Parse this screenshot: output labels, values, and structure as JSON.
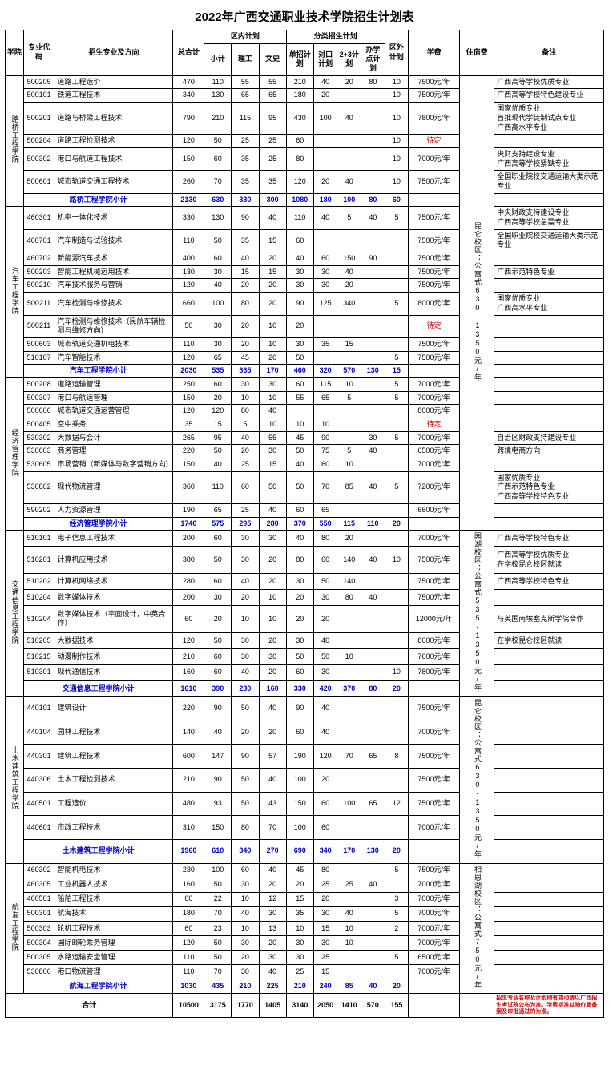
{
  "title": "2022年广西交通职业技术学院招生计划表",
  "headers": {
    "college": "学院",
    "code": "专业代码",
    "major": "招生专业及方向",
    "total": "总合计",
    "innerPlan": "区内计划",
    "inner_sub": "小计",
    "inner_sci": "理工",
    "inner_art": "文史",
    "catPlan": "分类招生计划",
    "cat_single": "单招计划",
    "cat_duikou": "对口计划",
    "cat_23": "2+3计划",
    "cat_banxue": "办学点计划",
    "outer": "区外计划",
    "fee": "学费",
    "dorm": "住宿费",
    "remark": "备注"
  },
  "pending_text": "待定",
  "colleges": [
    {
      "name": "路桥工程学院",
      "dorm": "",
      "rows": [
        {
          "code": "500205",
          "major": "道路工程造价",
          "total": "470",
          "xj": "110",
          "lg": "55",
          "ws": "55",
          "dz": "210",
          "dk": "40",
          "t23": "20",
          "bx": "80",
          "wq": "10",
          "fee": "7500元/年",
          "remark": "广西高等学校优质专业"
        },
        {
          "code": "500101",
          "major": "铁道工程技术",
          "total": "340",
          "xj": "130",
          "lg": "65",
          "ws": "65",
          "dz": "180",
          "dk": "20",
          "t23": "",
          "bx": "",
          "wq": "10",
          "fee": "7500元/年",
          "remark": "广西高等学校特色建设专业"
        },
        {
          "code": "500201",
          "major": "道路与桥梁工程技术",
          "total": "790",
          "xj": "210",
          "lg": "115",
          "ws": "95",
          "dz": "430",
          "dk": "100",
          "t23": "40",
          "bx": "",
          "wq": "10",
          "fee": "7800元/年",
          "remark": "国家优质专业\n首批现代学徒制试点专业\n广西高水平专业"
        },
        {
          "code": "500204",
          "major": "道路工程检测技术",
          "total": "120",
          "xj": "50",
          "lg": "25",
          "ws": "25",
          "dz": "60",
          "dk": "",
          "t23": "",
          "bx": "",
          "wq": "10",
          "fee": "",
          "fee_pending": true,
          "remark": ""
        },
        {
          "code": "500302",
          "major": "港口与航道工程技术",
          "total": "150",
          "xj": "60",
          "lg": "35",
          "ws": "25",
          "dz": "80",
          "dk": "",
          "t23": "",
          "bx": "",
          "wq": "10",
          "fee": "7000元/年",
          "remark": "央财支持建设专业\n广西高等学校紧缺专业"
        },
        {
          "code": "500601",
          "major": "城市轨道交通工程技术",
          "total": "260",
          "xj": "70",
          "lg": "35",
          "ws": "35",
          "dz": "120",
          "dk": "20",
          "t23": "40",
          "bx": "",
          "wq": "10",
          "fee": "7500元/年",
          "remark": "全国职业院校交通运输大类示范专业"
        }
      ],
      "subtotal": {
        "label": "路桥工程学院小计",
        "total": "2130",
        "xj": "630",
        "lg": "330",
        "ws": "300",
        "dz": "1080",
        "dk": "180",
        "t23": "100",
        "bx": "80",
        "wq": "60"
      }
    },
    {
      "name": "汽车工程学院",
      "dorm": "昆仑校区：公寓式630-1350元/年",
      "rows": [
        {
          "code": "460301",
          "major": "机电一体化技术",
          "total": "330",
          "xj": "130",
          "lg": "90",
          "ws": "40",
          "dz": "110",
          "dk": "40",
          "t23": "5",
          "bx": "40",
          "wq": "5",
          "fee": "7500元/年",
          "remark": "中央财政支持建设专业\n广西高等学校急需专业"
        },
        {
          "code": "460701",
          "major": "汽车制造与试验技术",
          "total": "110",
          "xj": "50",
          "lg": "35",
          "ws": "15",
          "dz": "60",
          "dk": "",
          "t23": "",
          "bx": "",
          "wq": "",
          "fee": "7500元/年",
          "remark": "全国职业院校交通运输大类示范专业"
        },
        {
          "code": "460702",
          "major": "新能源汽车技术",
          "total": "400",
          "xj": "60",
          "lg": "40",
          "ws": "20",
          "dz": "40",
          "dk": "60",
          "t23": "150",
          "bx": "90",
          "wq": "",
          "fee": "7500元/年",
          "remark": ""
        },
        {
          "code": "500203",
          "major": "智能工程机械运用技术",
          "total": "130",
          "xj": "30",
          "lg": "15",
          "ws": "15",
          "dz": "30",
          "dk": "30",
          "t23": "40",
          "bx": "",
          "wq": "",
          "fee": "7500元/年",
          "remark": "广西示范特色专业"
        },
        {
          "code": "500210",
          "major": "汽车技术服务与营销",
          "total": "120",
          "xj": "40",
          "lg": "20",
          "ws": "20",
          "dz": "30",
          "dk": "30",
          "t23": "20",
          "bx": "",
          "wq": "",
          "fee": "7500元/年",
          "remark": ""
        },
        {
          "code": "500211",
          "major": "汽车检测与维修技术",
          "total": "660",
          "xj": "100",
          "lg": "80",
          "ws": "20",
          "dz": "90",
          "dk": "125",
          "t23": "340",
          "bx": "",
          "wq": "5",
          "fee": "8000元/年",
          "remark": "国家优质专业\n广西高水平专业"
        },
        {
          "code": "500211",
          "major": "汽车检测与维修技术（民航车辆检测与维修方向）",
          "total": "50",
          "xj": "30",
          "lg": "20",
          "ws": "10",
          "dz": "20",
          "dk": "",
          "t23": "",
          "bx": "",
          "wq": "",
          "fee": "",
          "fee_pending": true,
          "remark": ""
        },
        {
          "code": "500603",
          "major": "城市轨道交通机电技术",
          "total": "110",
          "xj": "30",
          "lg": "20",
          "ws": "10",
          "dz": "30",
          "dk": "35",
          "t23": "15",
          "bx": "",
          "wq": "",
          "fee": "7500元/年",
          "remark": ""
        },
        {
          "code": "510107",
          "major": "汽车智能技术",
          "total": "120",
          "xj": "65",
          "lg": "45",
          "ws": "20",
          "dz": "50",
          "dk": "",
          "t23": "",
          "bx": "",
          "wq": "5",
          "fee": "7500元/年",
          "remark": ""
        }
      ],
      "subtotal": {
        "label": "汽车工程学院小计",
        "total": "2030",
        "xj": "535",
        "lg": "365",
        "ws": "170",
        "dz": "460",
        "dk": "320",
        "t23": "570",
        "bx": "130",
        "wq": "15"
      }
    },
    {
      "name": "经济管理学院",
      "dorm": "",
      "rows": [
        {
          "code": "500208",
          "major": "道路运输管理",
          "total": "250",
          "xj": "60",
          "lg": "30",
          "ws": "30",
          "dz": "60",
          "dk": "115",
          "t23": "10",
          "bx": "",
          "wq": "5",
          "fee": "7000元/年",
          "remark": ""
        },
        {
          "code": "500307",
          "major": "港口与航运管理",
          "total": "150",
          "xj": "20",
          "lg": "10",
          "ws": "10",
          "dz": "55",
          "dk": "65",
          "t23": "5",
          "bx": "",
          "wq": "5",
          "fee": "7000元/年",
          "remark": ""
        },
        {
          "code": "500606",
          "major": "城市轨道交通运营管理",
          "total": "120",
          "xj": "120",
          "lg": "80",
          "ws": "40",
          "dz": "",
          "dk": "",
          "t23": "",
          "bx": "",
          "wq": "",
          "fee": "8000元/年",
          "remark": ""
        },
        {
          "code": "500405",
          "major": "空中乘务",
          "total": "35",
          "xj": "15",
          "lg": "5",
          "ws": "10",
          "dz": "10",
          "dk": "10",
          "t23": "",
          "bx": "",
          "wq": "",
          "fee": "",
          "fee_pending": true,
          "remark": ""
        },
        {
          "code": "530302",
          "major": "大数据与会计",
          "total": "265",
          "xj": "95",
          "lg": "40",
          "ws": "55",
          "dz": "45",
          "dk": "90",
          "t23": "",
          "bx": "30",
          "wq": "5",
          "fee": "7000元/年",
          "remark": "自治区财政支持建设专业"
        },
        {
          "code": "530603",
          "major": "商务管理",
          "total": "220",
          "xj": "50",
          "lg": "20",
          "ws": "30",
          "dz": "50",
          "dk": "75",
          "t23": "5",
          "bx": "40",
          "wq": "",
          "fee": "6500元/年",
          "remark": "跨境电商方向"
        },
        {
          "code": "530605",
          "major": "市场营销（新媒体与数字营销方向）",
          "total": "150",
          "xj": "40",
          "lg": "25",
          "ws": "15",
          "dz": "40",
          "dk": "60",
          "t23": "10",
          "bx": "",
          "wq": "",
          "fee": "7000元/年",
          "remark": ""
        },
        {
          "code": "530802",
          "major": "现代物流管理",
          "total": "360",
          "xj": "110",
          "lg": "60",
          "ws": "50",
          "dz": "50",
          "dk": "70",
          "t23": "85",
          "bx": "40",
          "wq": "5",
          "fee": "7200元/年",
          "remark": "国家优质专业\n广西示范特色专业\n广西高等学校特色专业"
        },
        {
          "code": "590202",
          "major": "人力资源管理",
          "total": "190",
          "xj": "65",
          "lg": "25",
          "ws": "40",
          "dz": "60",
          "dk": "65",
          "t23": "",
          "bx": "",
          "wq": "",
          "fee": "6600元/年",
          "remark": ""
        }
      ],
      "subtotal": {
        "label": "经济管理学院小计",
        "total": "1740",
        "xj": "575",
        "lg": "295",
        "ws": "280",
        "dz": "370",
        "dk": "550",
        "t23": "115",
        "bx": "110",
        "wq": "20"
      }
    },
    {
      "name": "交通信息工程学院",
      "dorm": "园湖校区：公寓式535-1350元/年",
      "rows": [
        {
          "code": "510101",
          "major": "电子信息工程技术",
          "total": "200",
          "xj": "60",
          "lg": "30",
          "ws": "30",
          "dz": "40",
          "dk": "80",
          "t23": "20",
          "bx": "",
          "wq": "",
          "fee": "7000元/年",
          "remark": "广西高等学校特色专业"
        },
        {
          "code": "510201",
          "major": "计算机应用技术",
          "total": "380",
          "xj": "50",
          "lg": "30",
          "ws": "20",
          "dz": "80",
          "dk": "60",
          "t23": "140",
          "bx": "40",
          "wq": "10",
          "fee": "7500元/年",
          "remark": "广西高等学校优质专业\n在学校昆仑校区就读"
        },
        {
          "code": "510202",
          "major": "计算机网络技术",
          "total": "280",
          "xj": "60",
          "lg": "40",
          "ws": "20",
          "dz": "30",
          "dk": "50",
          "t23": "140",
          "bx": "",
          "wq": "",
          "fee": "7500元/年",
          "remark": "广西高等学校特色专业"
        },
        {
          "code": "510204",
          "major": "数字媒体技术",
          "total": "200",
          "xj": "30",
          "lg": "20",
          "ws": "10",
          "dz": "20",
          "dk": "30",
          "t23": "80",
          "bx": "40",
          "wq": "",
          "fee": "7500元/年",
          "remark": ""
        },
        {
          "code": "510204",
          "major": "数字媒体技术（平面设计，中英合作）",
          "total": "60",
          "xj": "20",
          "lg": "10",
          "ws": "10",
          "dz": "20",
          "dk": "20",
          "t23": "",
          "bx": "",
          "wq": "",
          "fee": "12000元/年",
          "remark": "与英国南埃塞克斯学院合作"
        },
        {
          "code": "510205",
          "major": "大数据技术",
          "total": "120",
          "xj": "50",
          "lg": "30",
          "ws": "20",
          "dz": "30",
          "dk": "40",
          "t23": "",
          "bx": "",
          "wq": "",
          "fee": "8000元/年",
          "remark": "在学校昆仑校区就读"
        },
        {
          "code": "510215",
          "major": "动漫制作技术",
          "total": "210",
          "xj": "60",
          "lg": "30",
          "ws": "30",
          "dz": "50",
          "dk": "50",
          "t23": "10",
          "bx": "",
          "wq": "",
          "fee": "7600元/年",
          "remark": ""
        },
        {
          "code": "510301",
          "major": "现代通信技术",
          "total": "160",
          "xj": "60",
          "lg": "40",
          "ws": "20",
          "dz": "60",
          "dk": "30",
          "t23": "",
          "bx": "",
          "wq": "10",
          "fee": "7800元/年",
          "remark": ""
        }
      ],
      "subtotal": {
        "label": "交通信息工程学院小计",
        "total": "1610",
        "xj": "390",
        "lg": "230",
        "ws": "160",
        "dz": "330",
        "dk": "420",
        "t23": "370",
        "bx": "80",
        "wq": "20"
      }
    },
    {
      "name": "土木建筑工程学院",
      "dorm": "昆仑校区：公寓式630-1350元/年",
      "rows": [
        {
          "code": "440101",
          "major": "建筑设计",
          "total": "220",
          "xj": "90",
          "lg": "50",
          "ws": "40",
          "dz": "90",
          "dk": "40",
          "t23": "",
          "bx": "",
          "wq": "",
          "fee": "7500元/年",
          "remark": ""
        },
        {
          "code": "440104",
          "major": "园林工程技术",
          "total": "140",
          "xj": "40",
          "lg": "20",
          "ws": "20",
          "dz": "60",
          "dk": "40",
          "t23": "",
          "bx": "",
          "wq": "",
          "fee": "7000元/年",
          "remark": ""
        },
        {
          "code": "440301",
          "major": "建筑工程技术",
          "total": "600",
          "xj": "147",
          "lg": "90",
          "ws": "57",
          "dz": "190",
          "dk": "120",
          "t23": "70",
          "bx": "65",
          "wq": "8",
          "fee": "7500元/年",
          "remark": ""
        },
        {
          "code": "440306",
          "major": "土木工程检测技术",
          "total": "210",
          "xj": "90",
          "lg": "50",
          "ws": "40",
          "dz": "100",
          "dk": "20",
          "t23": "",
          "bx": "",
          "wq": "",
          "fee": "7500元/年",
          "remark": ""
        },
        {
          "code": "440501",
          "major": "工程造价",
          "total": "480",
          "xj": "93",
          "lg": "50",
          "ws": "43",
          "dz": "150",
          "dk": "60",
          "t23": "100",
          "bx": "65",
          "wq": "12",
          "fee": "7500元/年",
          "remark": ""
        },
        {
          "code": "440601",
          "major": "市政工程技术",
          "total": "310",
          "xj": "150",
          "lg": "80",
          "ws": "70",
          "dz": "100",
          "dk": "60",
          "t23": "",
          "bx": "",
          "wq": "",
          "fee": "7000元/年",
          "remark": ""
        }
      ],
      "subtotal": {
        "label": "土木建筑工程学院小计",
        "total": "1960",
        "xj": "610",
        "lg": "340",
        "ws": "270",
        "dz": "690",
        "dk": "340",
        "t23": "170",
        "bx": "130",
        "wq": "20"
      }
    },
    {
      "name": "航海工程学院",
      "dorm": "相思湖校区：公寓式750元/年",
      "rows": [
        {
          "code": "460302",
          "major": "智能机电技术",
          "total": "230",
          "xj": "100",
          "lg": "60",
          "ws": "40",
          "dz": "45",
          "dk": "80",
          "t23": "",
          "bx": "",
          "wq": "5",
          "fee": "7500元/年",
          "remark": ""
        },
        {
          "code": "460305",
          "major": "工业机器人技术",
          "total": "160",
          "xj": "50",
          "lg": "30",
          "ws": "20",
          "dz": "20",
          "dk": "25",
          "t23": "25",
          "bx": "40",
          "wq": "",
          "fee": "7000元/年",
          "remark": ""
        },
        {
          "code": "460501",
          "major": "船舶工程技术",
          "total": "60",
          "xj": "22",
          "lg": "10",
          "ws": "12",
          "dz": "15",
          "dk": "20",
          "t23": "",
          "bx": "",
          "wq": "3",
          "fee": "7000元/年",
          "remark": ""
        },
        {
          "code": "500301",
          "major": "航海技术",
          "total": "180",
          "xj": "70",
          "lg": "40",
          "ws": "30",
          "dz": "35",
          "dk": "30",
          "t23": "40",
          "bx": "",
          "wq": "5",
          "fee": "7000元/年",
          "remark": ""
        },
        {
          "code": "500303",
          "major": "轮机工程技术",
          "total": "60",
          "xj": "23",
          "lg": "10",
          "ws": "13",
          "dz": "10",
          "dk": "15",
          "t23": "10",
          "bx": "",
          "wq": "2",
          "fee": "7000元/年",
          "remark": ""
        },
        {
          "code": "500304",
          "major": "国际邮轮乘务管理",
          "total": "120",
          "xj": "50",
          "lg": "30",
          "ws": "20",
          "dz": "30",
          "dk": "30",
          "t23": "10",
          "bx": "",
          "wq": "",
          "fee": "7000元/年",
          "remark": ""
        },
        {
          "code": "500305",
          "major": "水路运输安全管理",
          "total": "110",
          "xj": "50",
          "lg": "20",
          "ws": "30",
          "dz": "30",
          "dk": "25",
          "t23": "",
          "bx": "",
          "wq": "5",
          "fee": "6500元/年",
          "remark": ""
        },
        {
          "code": "530806",
          "major": "港口物流管理",
          "total": "110",
          "xj": "70",
          "lg": "30",
          "ws": "40",
          "dz": "25",
          "dk": "15",
          "t23": "",
          "bx": "",
          "wq": "",
          "fee": "7000元/年",
          "remark": ""
        }
      ],
      "subtotal": {
        "label": "航海工程学院小计",
        "total": "1030",
        "xj": "435",
        "lg": "210",
        "ws": "225",
        "dz": "210",
        "dk": "240",
        "t23": "85",
        "bx": "40",
        "wq": "20"
      }
    }
  ],
  "grand_total": {
    "label": "合计",
    "total": "10500",
    "xj": "3175",
    "lg": "1770",
    "ws": "1405",
    "dz": "3140",
    "dk": "2050",
    "t23": "1410",
    "bx": "570",
    "wq": "155"
  },
  "footnote": "招生专业名称及计划如有变动请以广西招生考试院公布为准。学费标准以物价局备案及审批通过的为准。"
}
